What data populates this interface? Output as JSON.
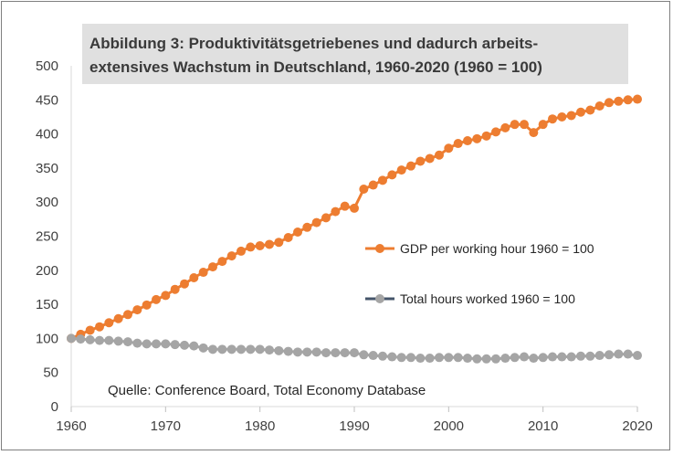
{
  "chart_data": {
    "type": "line",
    "title_lines": [
      "Abbildung 3: Produktivitätsgetriebenes und dadurch arbeits-",
      "extensives Wachstum in Deutschland, 1960-2020 (1960 = 100)"
    ],
    "source": "Quelle: Conference Board, Total Economy Database",
    "xlim": [
      1960,
      2020
    ],
    "ylim": [
      0,
      500
    ],
    "x_ticks": [
      "1960",
      "1970",
      "1980",
      "1990",
      "2000",
      "2010",
      "2020"
    ],
    "y_ticks": [
      "0",
      "50",
      "100",
      "150",
      "200",
      "250",
      "300",
      "350",
      "400",
      "450",
      "500"
    ],
    "x": [
      1960,
      1961,
      1962,
      1963,
      1964,
      1965,
      1966,
      1967,
      1968,
      1969,
      1970,
      1971,
      1972,
      1973,
      1974,
      1975,
      1976,
      1977,
      1978,
      1979,
      1980,
      1981,
      1982,
      1983,
      1984,
      1985,
      1986,
      1987,
      1988,
      1989,
      1990,
      1991,
      1992,
      1993,
      1994,
      1995,
      1996,
      1997,
      1998,
      1999,
      2000,
      2001,
      2002,
      2003,
      2004,
      2005,
      2006,
      2007,
      2008,
      2009,
      2010,
      2011,
      2012,
      2013,
      2014,
      2015,
      2016,
      2017,
      2018,
      2019,
      2020
    ],
    "series": [
      {
        "name": "GDP per working hour 1960 = 100",
        "color": "#ed7d31",
        "values": [
          100,
          106,
          112,
          117,
          123,
          129,
          135,
          142,
          149,
          157,
          163,
          172,
          180,
          189,
          197,
          205,
          213,
          221,
          228,
          234,
          236,
          238,
          241,
          248,
          256,
          263,
          270,
          277,
          286,
          294,
          291,
          319,
          325,
          332,
          340,
          347,
          353,
          360,
          364,
          369,
          379,
          386,
          390,
          393,
          397,
          403,
          409,
          414,
          414,
          402,
          414,
          422,
          425,
          427,
          432,
          435,
          441,
          446,
          448,
          450,
          451
        ]
      },
      {
        "name": "Total hours worked 1960 = 100",
        "color": "#a5a5a5",
        "values": [
          100,
          99,
          98,
          97,
          97,
          96,
          95,
          93,
          92,
          92,
          92,
          91,
          90,
          89,
          86,
          84,
          84,
          84,
          84,
          84,
          84,
          83,
          82,
          81,
          80,
          80,
          80,
          79,
          79,
          79,
          79,
          76,
          75,
          74,
          73,
          72,
          72,
          71,
          71,
          72,
          72,
          72,
          71,
          70,
          70,
          70,
          71,
          72,
          73,
          71,
          72,
          73,
          73,
          73,
          74,
          74,
          75,
          76,
          77,
          77,
          75
        ]
      }
    ],
    "legend_line_colors": [
      "#ed7d31",
      "#44546a"
    ]
  }
}
